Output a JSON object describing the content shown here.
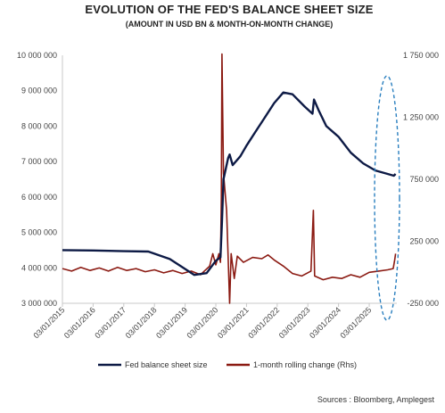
{
  "chart_data": {
    "type": "line",
    "title": "EVOLUTION OF THE FED'S BALANCE SHEET SIZE",
    "subtitle": "(AMOUNT IN USD BN & MONTH-ON-MONTH CHANGE)",
    "source": "Sources : Bloomberg, Amplegest",
    "x_ticks": [
      "03/01/2015",
      "03/01/2016",
      "03/01/2017",
      "03/01/2018",
      "03/01/2019",
      "03/01/2020",
      "03/01/2021",
      "03/01/2022",
      "03/01/2023",
      "03/01/2024",
      "03/01/2025"
    ],
    "y_left": {
      "ticks": [
        "3 000 000",
        "4 000 000",
        "5 000 000",
        "6 000 000",
        "7 000 000",
        "8 000 000",
        "9 000 000",
        "10 000 000"
      ],
      "ylim": [
        3000000,
        10000000
      ]
    },
    "y_right": {
      "ticks": [
        "-250 000",
        "250 000",
        "750 000",
        "1 250 000",
        "1 750 000"
      ],
      "ylim": [
        -250000,
        1750000
      ]
    },
    "legend_position": "bottom",
    "series": [
      {
        "name": "Fed balance sheet size",
        "axis": "left",
        "color": "#0d1a45",
        "points": [
          [
            2015.0,
            4500000
          ],
          [
            2016.0,
            4490000
          ],
          [
            2017.0,
            4470000
          ],
          [
            2017.8,
            4460000
          ],
          [
            2018.5,
            4250000
          ],
          [
            2019.3,
            3800000
          ],
          [
            2019.7,
            3850000
          ],
          [
            2020.0,
            4200000
          ],
          [
            2020.15,
            4300000
          ],
          [
            2020.2,
            5300000
          ],
          [
            2020.25,
            6500000
          ],
          [
            2020.4,
            7100000
          ],
          [
            2020.45,
            7200000
          ],
          [
            2020.55,
            6900000
          ],
          [
            2020.8,
            7150000
          ],
          [
            2021.0,
            7450000
          ],
          [
            2021.3,
            7850000
          ],
          [
            2021.6,
            8250000
          ],
          [
            2021.9,
            8650000
          ],
          [
            2022.2,
            8950000
          ],
          [
            2022.5,
            8900000
          ],
          [
            2022.9,
            8550000
          ],
          [
            2023.15,
            8350000
          ],
          [
            2023.2,
            8750000
          ],
          [
            2023.35,
            8450000
          ],
          [
            2023.6,
            8000000
          ],
          [
            2024.0,
            7700000
          ],
          [
            2024.4,
            7250000
          ],
          [
            2024.8,
            6950000
          ],
          [
            2025.2,
            6750000
          ],
          [
            2025.6,
            6650000
          ],
          [
            2025.8,
            6600000
          ],
          [
            2025.86,
            6650000
          ]
        ]
      },
      {
        "name": "1-month rolling change (Rhs)",
        "axis": "right",
        "color": "#8b1a12",
        "points": [
          [
            2015.0,
            30000
          ],
          [
            2015.3,
            10000
          ],
          [
            2015.6,
            40000
          ],
          [
            2015.9,
            15000
          ],
          [
            2016.2,
            35000
          ],
          [
            2016.5,
            10000
          ],
          [
            2016.8,
            40000
          ],
          [
            2017.1,
            15000
          ],
          [
            2017.4,
            30000
          ],
          [
            2017.7,
            5000
          ],
          [
            2018.0,
            20000
          ],
          [
            2018.3,
            -5000
          ],
          [
            2018.6,
            15000
          ],
          [
            2018.9,
            -10000
          ],
          [
            2019.2,
            10000
          ],
          [
            2019.5,
            -20000
          ],
          [
            2019.8,
            50000
          ],
          [
            2019.9,
            150000
          ],
          [
            2020.0,
            60000
          ],
          [
            2020.1,
            150000
          ],
          [
            2020.15,
            80000
          ],
          [
            2020.18,
            600000
          ],
          [
            2020.2,
            1760000
          ],
          [
            2020.25,
            800000
          ],
          [
            2020.35,
            500000
          ],
          [
            2020.45,
            -250000
          ],
          [
            2020.5,
            150000
          ],
          [
            2020.6,
            -50000
          ],
          [
            2020.7,
            130000
          ],
          [
            2020.9,
            80000
          ],
          [
            2021.2,
            120000
          ],
          [
            2021.5,
            110000
          ],
          [
            2021.7,
            140000
          ],
          [
            2021.9,
            100000
          ],
          [
            2022.2,
            50000
          ],
          [
            2022.5,
            -10000
          ],
          [
            2022.8,
            -30000
          ],
          [
            2023.1,
            10000
          ],
          [
            2023.18,
            500000
          ],
          [
            2023.22,
            -30000
          ],
          [
            2023.5,
            -60000
          ],
          [
            2023.8,
            -40000
          ],
          [
            2024.1,
            -50000
          ],
          [
            2024.4,
            -20000
          ],
          [
            2024.7,
            -40000
          ],
          [
            2025.0,
            0
          ],
          [
            2025.3,
            10000
          ],
          [
            2025.6,
            20000
          ],
          [
            2025.78,
            30000
          ],
          [
            2025.83,
            100000
          ],
          [
            2025.86,
            150000
          ]
        ]
      }
    ]
  }
}
